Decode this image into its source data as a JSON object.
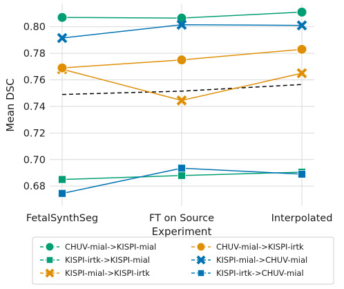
{
  "chart_data": {
    "type": "line",
    "categories": [
      "FetalSynthSeg",
      "FT on Source",
      "Interpolated"
    ],
    "xlabel": "Experiment",
    "ylabel": "Mean DSC",
    "ylim": [
      0.665,
      0.817
    ],
    "yticks": [
      "0.68",
      "0.70",
      "0.72",
      "0.74",
      "0.76",
      "0.78",
      "0.80"
    ],
    "ytick_values": [
      0.68,
      0.7,
      0.72,
      0.74,
      0.76,
      0.78,
      0.8
    ],
    "grid": true,
    "legend_position": "below",
    "series": [
      {
        "name": "CHUV-mial->KISPI-mial",
        "values": [
          0.807,
          0.8065,
          0.811
        ],
        "color": "#029e73",
        "marker": "circle"
      },
      {
        "name": "KISPI-irtk->KISPI-mial",
        "values": [
          0.685,
          0.688,
          0.6905
        ],
        "color": "#029e73",
        "marker": "square"
      },
      {
        "name": "KISPI-mial->KISPI-irtk",
        "values": [
          0.768,
          0.7445,
          0.765
        ],
        "color": "#de8f05",
        "marker": "x"
      },
      {
        "name": "CHUV-mial->KISPI-irtk",
        "values": [
          0.769,
          0.775,
          0.783
        ],
        "color": "#de8f05",
        "marker": "circle"
      },
      {
        "name": "KISPI-mial->CHUV-mial",
        "values": [
          0.7915,
          0.8015,
          0.801
        ],
        "color": "#0173b2",
        "marker": "x"
      },
      {
        "name": "KISPI-irtk->CHUV-mial",
        "values": [
          0.6745,
          0.6935,
          0.689
        ],
        "color": "#0173b2",
        "marker": "square"
      }
    ],
    "reference_line": {
      "values": [
        0.749,
        0.7515,
        0.7565
      ],
      "color": "#000000",
      "style": "dashed"
    }
  }
}
